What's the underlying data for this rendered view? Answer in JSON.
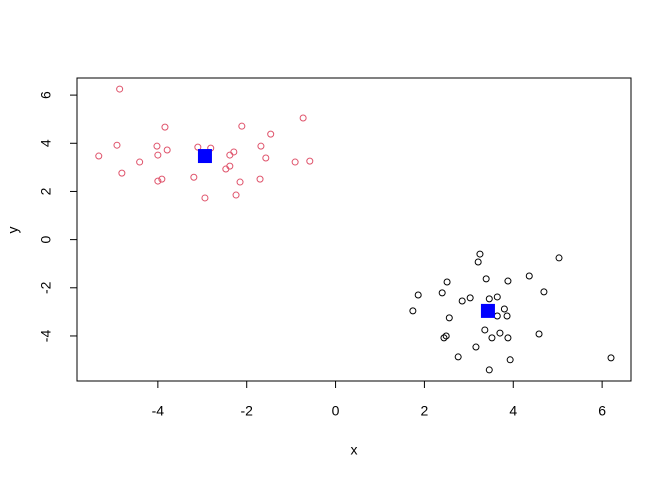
{
  "chart_data": {
    "type": "scatter",
    "xlabel": "x",
    "ylabel": "y",
    "xlim": [
      -5.82,
      6.65
    ],
    "ylim": [
      -5.87,
      6.71
    ],
    "xticks": [
      -4,
      -2,
      0,
      2,
      4,
      6
    ],
    "yticks": [
      -4,
      -2,
      0,
      2,
      4,
      6
    ],
    "series": [
      {
        "color": "#000000",
        "symbol": "circle-open",
        "x": [
          3.25,
          3.21,
          5.03,
          4.36,
          3.39,
          2.51,
          3.88,
          4.69,
          1.86,
          2.4,
          3.03,
          2.85,
          3.46,
          3.64,
          1.74,
          2.56,
          3.64,
          3.8,
          3.86,
          3.36,
          3.7,
          3.88,
          3.52,
          4.58,
          2.49,
          2.44,
          3.16,
          2.76,
          3.93,
          3.46,
          6.2
        ],
        "y": [
          -0.6,
          -0.93,
          -0.76,
          -1.51,
          -1.63,
          -1.76,
          -1.72,
          -2.17,
          -2.3,
          -2.21,
          -2.42,
          -2.55,
          -2.46,
          -2.38,
          -2.96,
          -3.25,
          -3.17,
          -2.88,
          -3.17,
          -3.75,
          -3.88,
          -4.08,
          -4.08,
          -3.92,
          -4.0,
          -4.08,
          -4.46,
          -4.87,
          -4.99,
          -5.41,
          -4.91
        ]
      },
      {
        "color": "#df536b",
        "symbol": "circle-open",
        "x": [
          -4.86,
          -5.33,
          -4.92,
          -4.81,
          -4.41,
          -4.02,
          -4.0,
          -3.84,
          -3.79,
          -4.0,
          -3.91,
          -3.19,
          -3.1,
          -2.81,
          -2.94,
          -2.47,
          -2.38,
          -2.38,
          -2.29,
          -2.15,
          -2.24,
          -2.11,
          -1.7,
          -1.68,
          -1.57,
          -1.46,
          -0.91,
          -0.73,
          -0.58
        ],
        "y": [
          6.25,
          3.47,
          3.92,
          2.76,
          3.22,
          3.88,
          3.51,
          4.67,
          3.72,
          2.43,
          2.51,
          2.59,
          3.84,
          3.8,
          1.73,
          2.93,
          3.05,
          3.51,
          3.64,
          2.39,
          1.85,
          4.71,
          2.51,
          3.88,
          3.39,
          4.38,
          3.22,
          5.05,
          3.26
        ]
      },
      {
        "color": "#0000ff",
        "symbol": "square",
        "x": [
          3.43,
          -2.94
        ],
        "y": [
          -2.96,
          3.47
        ]
      }
    ]
  }
}
